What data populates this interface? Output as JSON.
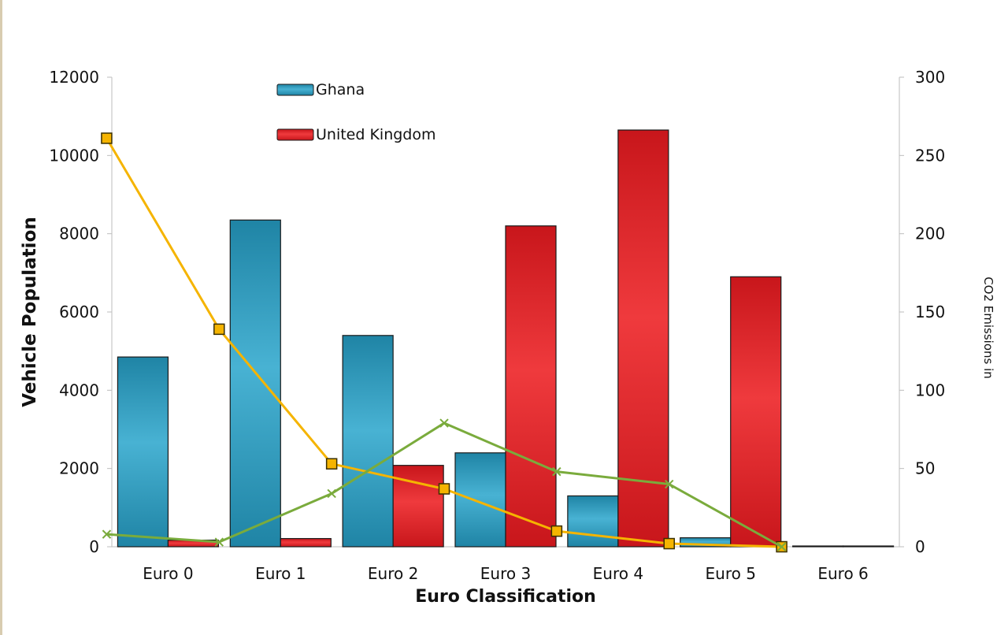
{
  "chart_data": {
    "type": "bar",
    "categories": [
      "Euro 0",
      "Euro 1",
      "Euro 2",
      "Euro 3",
      "Euro 4",
      "Euro 5",
      "Euro 6"
    ],
    "xlabel": "Euro Classification",
    "ylabel": "Vehicle Population",
    "y2label": "CO2 Emissions in",
    "ylim": [
      0,
      12000
    ],
    "y2lim": [
      0,
      300
    ],
    "yticks": [
      0,
      2000,
      4000,
      6000,
      8000,
      10000,
      12000
    ],
    "y2ticks": [
      0,
      50,
      100,
      150,
      200,
      250,
      300
    ],
    "grid": false,
    "legend_position": "top-center",
    "series": [
      {
        "name": "Ghana",
        "kind": "bar",
        "axis": "left",
        "color": "#2e9ec2",
        "values": [
          4850,
          8350,
          5400,
          2400,
          1300,
          230,
          0
        ]
      },
      {
        "name": "United Kingdom",
        "kind": "bar",
        "axis": "left",
        "color": "#e0282c",
        "values": [
          170,
          210,
          2080,
          8200,
          10650,
          6900,
          20
        ]
      },
      {
        "kind": "line",
        "axis": "right",
        "color": "#f5b400",
        "marker": "square",
        "values": [
          261,
          139,
          53,
          37,
          10,
          2,
          0
        ]
      },
      {
        "kind": "line",
        "axis": "right",
        "color": "#7aab3c",
        "marker": "x",
        "values": [
          8,
          3,
          34,
          79,
          48,
          40,
          0
        ]
      }
    ]
  }
}
